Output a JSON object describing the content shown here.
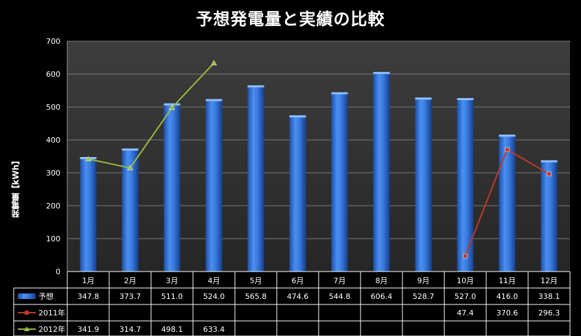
{
  "chart_data": {
    "type": "bar",
    "title": "予想発電量と実績の比較",
    "ylabel": "発電量【kWh】",
    "xlabel": "",
    "ylim": [
      0,
      700
    ],
    "yticks": [
      0,
      100,
      200,
      300,
      400,
      500,
      600,
      700
    ],
    "grid": true,
    "categories": [
      "1月",
      "2月",
      "3月",
      "4月",
      "5月",
      "6月",
      "7月",
      "8月",
      "9月",
      "10月",
      "11月",
      "12月"
    ],
    "series": [
      {
        "name": "予想",
        "type": "bar",
        "color": "#3a7be0",
        "values": [
          347.8,
          373.7,
          511.0,
          524.0,
          565.8,
          474.6,
          544.8,
          606.4,
          528.7,
          527.0,
          416.0,
          338.1
        ],
        "labels": [
          "347.8",
          "373.7",
          "511.0",
          "524.0",
          "565.8",
          "474.6",
          "544.8",
          "606.4",
          "528.7",
          "527.0",
          "416.0",
          "338.1"
        ]
      },
      {
        "name": "2011年",
        "type": "line",
        "color": "#c0392b",
        "marker": "square",
        "values": [
          null,
          null,
          null,
          null,
          null,
          null,
          null,
          null,
          null,
          47.4,
          370.6,
          296.3
        ],
        "labels": [
          "",
          "",
          "",
          "",
          "",
          "",
          "",
          "",
          "",
          "47.4",
          "370.6",
          "296.3"
        ]
      },
      {
        "name": "2012年",
        "type": "line",
        "color": "#9bbb3a",
        "marker": "triangle",
        "values": [
          341.9,
          314.7,
          498.1,
          633.4,
          null,
          null,
          null,
          null,
          null,
          null,
          null,
          null
        ],
        "labels": [
          "341.9",
          "314.7",
          "498.1",
          "633.4",
          "",
          "",
          "",
          "",
          "",
          "",
          "",
          ""
        ]
      }
    ],
    "legend": "data-table"
  }
}
